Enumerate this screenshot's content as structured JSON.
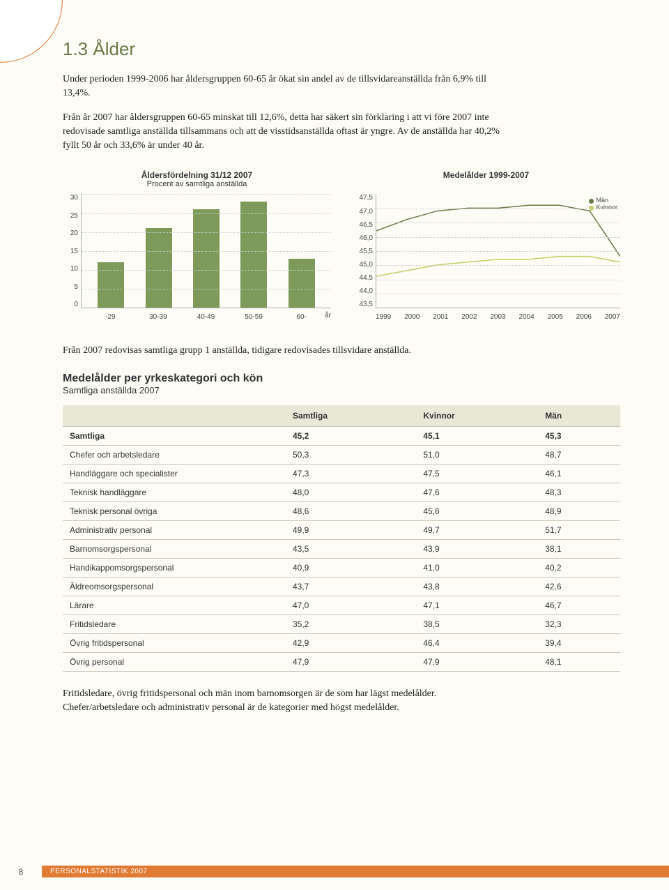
{
  "section": {
    "title": "1.3 Ålder",
    "para1": "Under perioden 1999-2006 har åldersgruppen 60-65 år ökat sin andel av de tillsvidareanställda från 6,9% till 13,4%.",
    "para2": "Från år 2007 har åldersgruppen 60-65 minskat till 12,6%, detta har säkert sin förklaring i att vi före 2007 inte redovisade samtliga anställda tillsammans och att de visstidsanställda oftast är yngre. Av de anställda har 40,2% fyllt 50 år och 33,6% är under 40 år.",
    "para3": "Från 2007 redovisas samtliga grupp 1 anställda, tidigare redovisades tillsvidare anställda.",
    "para4": "Fritidsledare, övrig fritidspersonal och män inom barnomsorgen är de som har lägst medelålder. Chefer/arbetsledare och administrativ personal är de kategorier med högst medelålder."
  },
  "bar_chart": {
    "type": "bar",
    "title": "Åldersfördelning 31/12 2007",
    "subtitle": "Procent av samtliga anställda",
    "ylim": [
      0,
      30
    ],
    "ytick_step": 5,
    "categories": [
      "-29",
      "30-39",
      "40-49",
      "50-59",
      "60-"
    ],
    "x_unit": "år",
    "values": [
      12,
      21,
      26,
      28,
      13
    ],
    "bar_color": "#7e9a5b",
    "grid_color": "#cccccc",
    "axis_label_fontsize": 10
  },
  "line_chart": {
    "type": "line",
    "title": "Medelålder 1999-2007",
    "ylim": [
      43.5,
      47.5
    ],
    "ytick_step": 0.5,
    "years": [
      "1999",
      "2000",
      "2001",
      "2002",
      "2003",
      "2004",
      "2005",
      "2006",
      "2007"
    ],
    "series": [
      {
        "name": "Män",
        "color": "#6b7a4a",
        "values": [
          46.2,
          46.6,
          46.9,
          47.0,
          47.0,
          47.1,
          47.1,
          46.9,
          45.3
        ]
      },
      {
        "name": "Kvinnor",
        "color": "#c3cf63",
        "values": [
          44.6,
          44.8,
          45.0,
          45.1,
          45.2,
          45.2,
          45.3,
          45.3,
          45.1
        ]
      }
    ],
    "grid_color": "#cccccc",
    "legend_fontsize": 9
  },
  "table": {
    "title": "Medelålder per yrkeskategori och kön",
    "subtitle": "Samtliga anställda 2007",
    "columns": [
      "",
      "Samtliga",
      "Kvinnor",
      "Män"
    ],
    "header_bg": "#e9e7d6",
    "border_color": "#c9c7b6",
    "total_row": [
      "Samtliga",
      "45,2",
      "45,1",
      "45,3"
    ],
    "rows": [
      [
        "Chefer och arbetsledare",
        "50,3",
        "51,0",
        "48,7"
      ],
      [
        "Handläggare och specialister",
        "47,3",
        "47,5",
        "46,1"
      ],
      [
        "Teknisk handläggare",
        "48,0",
        "47,6",
        "48,3"
      ],
      [
        "Teknisk personal övriga",
        "48,6",
        "45,6",
        "48,9"
      ],
      [
        "Administrativ personal",
        "49,9",
        "49,7",
        "51,7"
      ],
      [
        "Barnomsorgspersonal",
        "43,5",
        "43,9",
        "38,1"
      ],
      [
        "Handikappomsorgspersonal",
        "40,9",
        "41,0",
        "40,2"
      ],
      [
        "Äldreomsorgspersonal",
        "43,7",
        "43,8",
        "42,6"
      ],
      [
        "Lärare",
        "47,0",
        "47,1",
        "46,7"
      ],
      [
        "Fritidsledare",
        "35,2",
        "38,5",
        "32,3"
      ],
      [
        "Övrig fritidspersonal",
        "42,9",
        "46,4",
        "39,4"
      ],
      [
        "Övrig personal",
        "47,9",
        "47,9",
        "48,1"
      ]
    ]
  },
  "footer": {
    "page": "8",
    "label": "PERSONALSTATISTIK 2007",
    "bar_color": "#e17a32"
  }
}
